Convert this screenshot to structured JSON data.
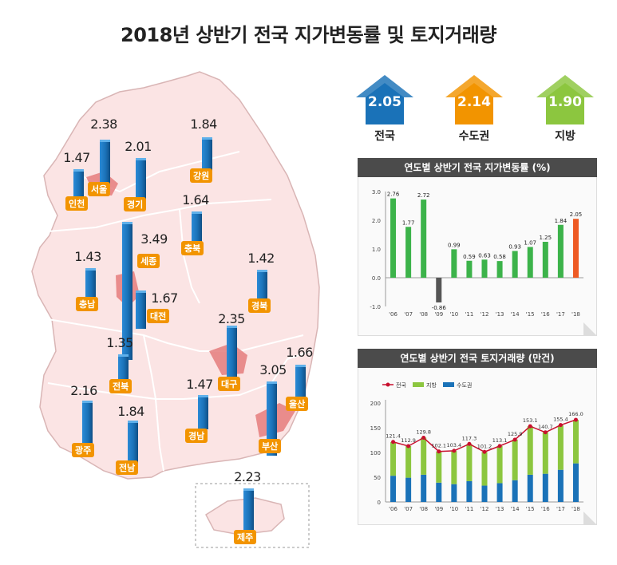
{
  "title": "2018년 상반기 전국 지가변동률 및 토지거래량",
  "colors": {
    "blue": "#1a72b8",
    "orange": "#f29400",
    "green": "#8cc63f",
    "map_fill": "#fbe4e4",
    "map_stroke": "#d9c2c2",
    "highlight": "#e88a8a"
  },
  "summary": [
    {
      "value": "2.05",
      "label": "전국",
      "color": "#1a72b8"
    },
    {
      "value": "2.14",
      "label": "수도권",
      "color": "#f29400"
    },
    {
      "value": "1.90",
      "label": "지방",
      "color": "#8cc63f"
    }
  ],
  "regions": [
    {
      "key": "seoul",
      "name": "서울",
      "value": "2.38"
    },
    {
      "key": "incheon",
      "name": "인천",
      "value": "1.47"
    },
    {
      "key": "gyeonggi",
      "name": "경기",
      "value": "2.01"
    },
    {
      "key": "gangwon",
      "name": "강원",
      "value": "1.84"
    },
    {
      "key": "chungbuk",
      "name": "충북",
      "value": "1.64"
    },
    {
      "key": "sejong",
      "name": "세종",
      "value": "3.49"
    },
    {
      "key": "chungnam",
      "name": "충남",
      "value": "1.43"
    },
    {
      "key": "daejeon",
      "name": "대전",
      "value": "1.67"
    },
    {
      "key": "gyeongbuk",
      "name": "경북",
      "value": "1.42"
    },
    {
      "key": "daegu",
      "name": "대구",
      "value": "2.35"
    },
    {
      "key": "jeonbuk",
      "name": "전북",
      "value": "1.35"
    },
    {
      "key": "ulsan",
      "name": "울산",
      "value": "1.66"
    },
    {
      "key": "gwangju",
      "name": "광주",
      "value": "2.16"
    },
    {
      "key": "jeonnam",
      "name": "전남",
      "value": "1.84"
    },
    {
      "key": "gyeongnam",
      "name": "경남",
      "value": "1.47"
    },
    {
      "key": "busan",
      "name": "부산",
      "value": "3.05"
    },
    {
      "key": "jeju",
      "name": "제주",
      "value": "2.23"
    }
  ],
  "chart_data": [
    {
      "type": "bar",
      "title": "연도별 상반기 전국 지가변동률 (%)",
      "categories": [
        "'06",
        "'07",
        "'08",
        "'09",
        "'10",
        "'11",
        "'12",
        "'13",
        "'14",
        "'15",
        "'16",
        "'17",
        "'18"
      ],
      "values": [
        2.76,
        1.77,
        2.72,
        -0.86,
        0.99,
        0.59,
        0.63,
        0.58,
        0.93,
        1.07,
        1.25,
        1.84,
        2.05
      ],
      "value_labels": [
        "2.76",
        "1.77",
        "2.72",
        "-0.86",
        "0.99",
        "0.59",
        "0.63",
        "0.58",
        "0.93",
        "1.07",
        "1.25",
        "1.84",
        "2.05"
      ],
      "ylim": [
        -1.0,
        3.0
      ],
      "yticks": [
        "3.0",
        "2.0",
        "1.0",
        "0.0",
        "-1.0"
      ],
      "ytick_values": [
        3,
        2,
        1,
        0,
        -1
      ],
      "bar_color": "#3cb34a",
      "highlight_color": "#ee5a24"
    },
    {
      "type": "bar",
      "title": "연도별 상반기 전국 토지거래량 (만건)",
      "categories": [
        "'06",
        "'07",
        "'08",
        "'09",
        "'10",
        "'11",
        "'12",
        "'13",
        "'14",
        "'15",
        "'16",
        "'17",
        "'18"
      ],
      "legend": [
        "전국",
        "지방",
        "수도권"
      ],
      "series": [
        {
          "name": "전국",
          "type": "line",
          "color": "#c8102e",
          "values": [
            121.4,
            112.9,
            129.8,
            102.1,
            103.4,
            117.3,
            101.2,
            113.1,
            125.9,
            153.1,
            140.7,
            155.4,
            166.0
          ],
          "labels": [
            "121.4",
            "112.9",
            "129.8",
            "102.1",
            "103.4",
            "117.3",
            "101.2",
            "113.1",
            "125.9",
            "153.1",
            "140.7",
            "155.4",
            "166.0"
          ]
        },
        {
          "name": "지방",
          "type": "stacked-bar",
          "color": "#8cc63f",
          "values": [
            68,
            64,
            75,
            63,
            67,
            75,
            68,
            75,
            82,
            98,
            84,
            90,
            88
          ]
        },
        {
          "name": "수도권",
          "type": "stacked-bar",
          "color": "#1a72b8",
          "values": [
            53,
            49,
            55,
            39,
            36,
            42,
            33,
            38,
            44,
            55,
            57,
            65,
            78
          ]
        }
      ],
      "ylim": [
        0,
        200
      ],
      "yticks": [
        "200",
        "150",
        "100",
        "50",
        "0"
      ],
      "ytick_values": [
        200,
        150,
        100,
        50,
        0
      ]
    }
  ]
}
